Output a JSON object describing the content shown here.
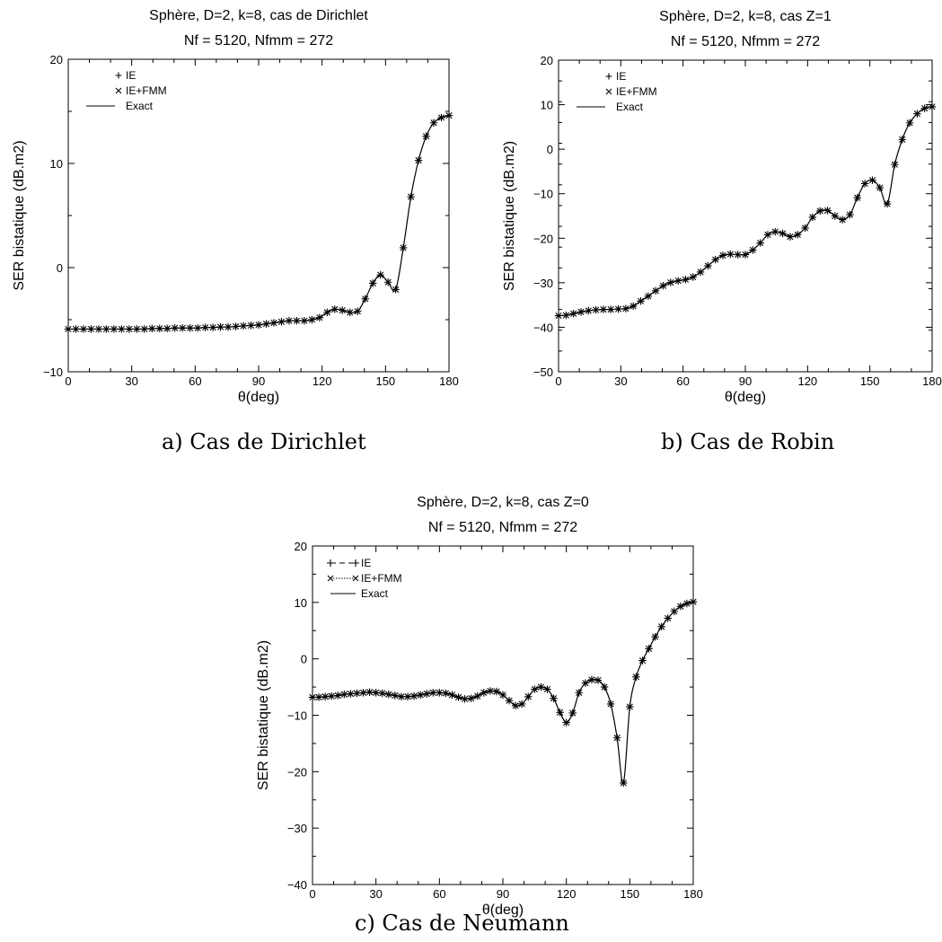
{
  "chart_data": [
    {
      "type": "line",
      "title": "Sphère, D=2, k=8, cas de Dirichlet",
      "subtitle": "Nf = 5120, Nfmm = 272",
      "xlabel": "θ(deg)",
      "ylabel": "SER bistatique (dB.m2)",
      "xlim": [
        0,
        180
      ],
      "ylim": [
        -10,
        20
      ],
      "xticks": [
        "0",
        "30",
        "60",
        "90",
        "120",
        "150",
        "180"
      ],
      "yticks": [
        "−10",
        "0",
        "10",
        "20"
      ],
      "legend_position": "top-left",
      "legend": [
        "IE",
        "IE+FMM",
        "Exact"
      ],
      "caption": "a) Cas de Dirichlet",
      "x": [
        0,
        3.6,
        7.2,
        10.8,
        14.4,
        18,
        21.6,
        25.2,
        28.8,
        32.4,
        36,
        39.6,
        43.2,
        46.8,
        50.4,
        54,
        57.6,
        61.2,
        64.8,
        68.4,
        72,
        75.6,
        79.2,
        82.8,
        86.4,
        90,
        93.6,
        97.2,
        100.8,
        104.4,
        108,
        111.6,
        115.2,
        118.8,
        122.4,
        126,
        129.6,
        133.2,
        136.8,
        140.4,
        144,
        147.6,
        151.2,
        154.8,
        158.4,
        162,
        165.6,
        169.2,
        172.8,
        176.4,
        180
      ],
      "series": [
        {
          "values": [
            -5.9,
            -5.9,
            -5.9,
            -5.9,
            -5.9,
            -5.9,
            -5.9,
            -5.9,
            -5.9,
            -5.9,
            -5.9,
            -5.85,
            -5.85,
            -5.85,
            -5.8,
            -5.8,
            -5.8,
            -5.8,
            -5.75,
            -5.75,
            -5.7,
            -5.7,
            -5.65,
            -5.6,
            -5.55,
            -5.5,
            -5.4,
            -5.3,
            -5.2,
            -5.1,
            -5.1,
            -5.1,
            -5.0,
            -4.8,
            -4.3,
            -4.0,
            -4.1,
            -4.3,
            -4.2,
            -3.0,
            -1.5,
            -0.7,
            -1.4,
            -2.1,
            1.9,
            6.8,
            10.3,
            12.6,
            13.9,
            14.4,
            14.6
          ]
        }
      ]
    },
    {
      "type": "line",
      "title": "Sphère, D=2, k=8, cas Z=1",
      "subtitle": "Nf = 5120, Nfmm = 272",
      "xlabel": "θ(deg)",
      "ylabel": "SER bistatique (dB.m2)",
      "xlim": [
        0,
        180
      ],
      "ylim": [
        -50,
        25
      ],
      "xticks": [
        "0",
        "30",
        "60",
        "90",
        "120",
        "150",
        "180"
      ],
      "yticks": [
        "−50",
        "−40",
        "−30",
        "−20",
        "−10",
        "0",
        "10",
        "20"
      ],
      "legend_position": "top-left",
      "legend": [
        "IE",
        "IE+FMM",
        "Exact"
      ],
      "caption": "b) Cas de Robin",
      "x": [
        0,
        3.6,
        7.2,
        10.8,
        14.4,
        18,
        21.6,
        25.2,
        28.8,
        32.4,
        36,
        39.6,
        43.2,
        46.8,
        50.4,
        54,
        57.6,
        61.2,
        64.8,
        68.4,
        72,
        75.6,
        79.2,
        82.8,
        86.4,
        90,
        93.6,
        97.2,
        100.8,
        104.4,
        108,
        111.6,
        115.2,
        118.8,
        122.4,
        126,
        129.6,
        133.2,
        136.8,
        140.4,
        144,
        147.6,
        151.2,
        154.8,
        158.4,
        162,
        165.6,
        169.2,
        172.8,
        176.4,
        180
      ],
      "series": [
        {
          "values": [
            -36.5,
            -36.4,
            -36.0,
            -35.6,
            -35.3,
            -35.1,
            -35.0,
            -35.0,
            -34.9,
            -34.8,
            -34.2,
            -33.0,
            -31.8,
            -30.5,
            -29.3,
            -28.5,
            -28.1,
            -27.8,
            -27.2,
            -26.0,
            -24.5,
            -23.0,
            -22.0,
            -21.7,
            -21.8,
            -21.8,
            -20.7,
            -19.0,
            -17.0,
            -16.3,
            -16.7,
            -17.5,
            -17.0,
            -15.4,
            -12.8,
            -11.3,
            -11.2,
            -12.5,
            -13.4,
            -12.2,
            -8.1,
            -4.7,
            -3.9,
            -5.7,
            -9.6,
            -0.1,
            5.9,
            9.9,
            12.1,
            13.4,
            13.8
          ]
        }
      ]
    },
    {
      "type": "line",
      "title": "Sphère, D=2, k=8, cas Z=0",
      "subtitle": "Nf = 5120, Nfmm = 272",
      "xlabel": "θ(deg)",
      "ylabel": "SER bistatique (dB.m2)",
      "xlim": [
        0,
        180
      ],
      "ylim": [
        -40,
        20
      ],
      "xticks": [
        "0",
        "30",
        "60",
        "90",
        "120",
        "150",
        "180"
      ],
      "yticks": [
        "−40",
        "−30",
        "−20",
        "−10",
        "0",
        "10",
        "20"
      ],
      "legend_position": "top-left",
      "legend": [
        "IE",
        "IE+FMM",
        "Exact"
      ],
      "caption": "c) Cas de Neumann",
      "x": [
        0,
        3,
        6,
        9,
        12,
        15,
        18,
        21,
        24,
        27,
        30,
        33,
        36,
        39,
        42,
        45,
        48,
        51,
        54,
        57,
        60,
        63,
        66,
        69,
        72,
        75,
        78,
        81,
        84,
        87,
        90,
        93,
        96,
        99,
        102,
        105,
        108,
        111,
        114,
        117,
        120,
        123,
        126,
        129,
        132,
        135,
        138,
        141,
        144,
        147,
        150,
        153,
        156,
        159,
        162,
        165,
        168,
        171,
        174,
        177,
        180
      ],
      "series": [
        {
          "values": [
            -6.8,
            -6.8,
            -6.7,
            -6.6,
            -6.5,
            -6.3,
            -6.2,
            -6.1,
            -6.0,
            -5.9,
            -6.0,
            -6.1,
            -6.3,
            -6.5,
            -6.7,
            -6.7,
            -6.6,
            -6.4,
            -6.2,
            -6.0,
            -6.0,
            -6.1,
            -6.4,
            -6.8,
            -7.1,
            -7.0,
            -6.6,
            -6.0,
            -5.7,
            -5.8,
            -6.4,
            -7.4,
            -8.3,
            -8.0,
            -6.7,
            -5.4,
            -5.0,
            -5.4,
            -7.0,
            -9.5,
            -11.3,
            -9.6,
            -6.0,
            -4.3,
            -3.7,
            -3.8,
            -5.0,
            -8.0,
            -14.0,
            -22.0,
            -8.5,
            -3.2,
            -0.3,
            1.8,
            3.9,
            5.7,
            7.2,
            8.4,
            9.3,
            9.8,
            10.1
          ]
        }
      ]
    }
  ]
}
